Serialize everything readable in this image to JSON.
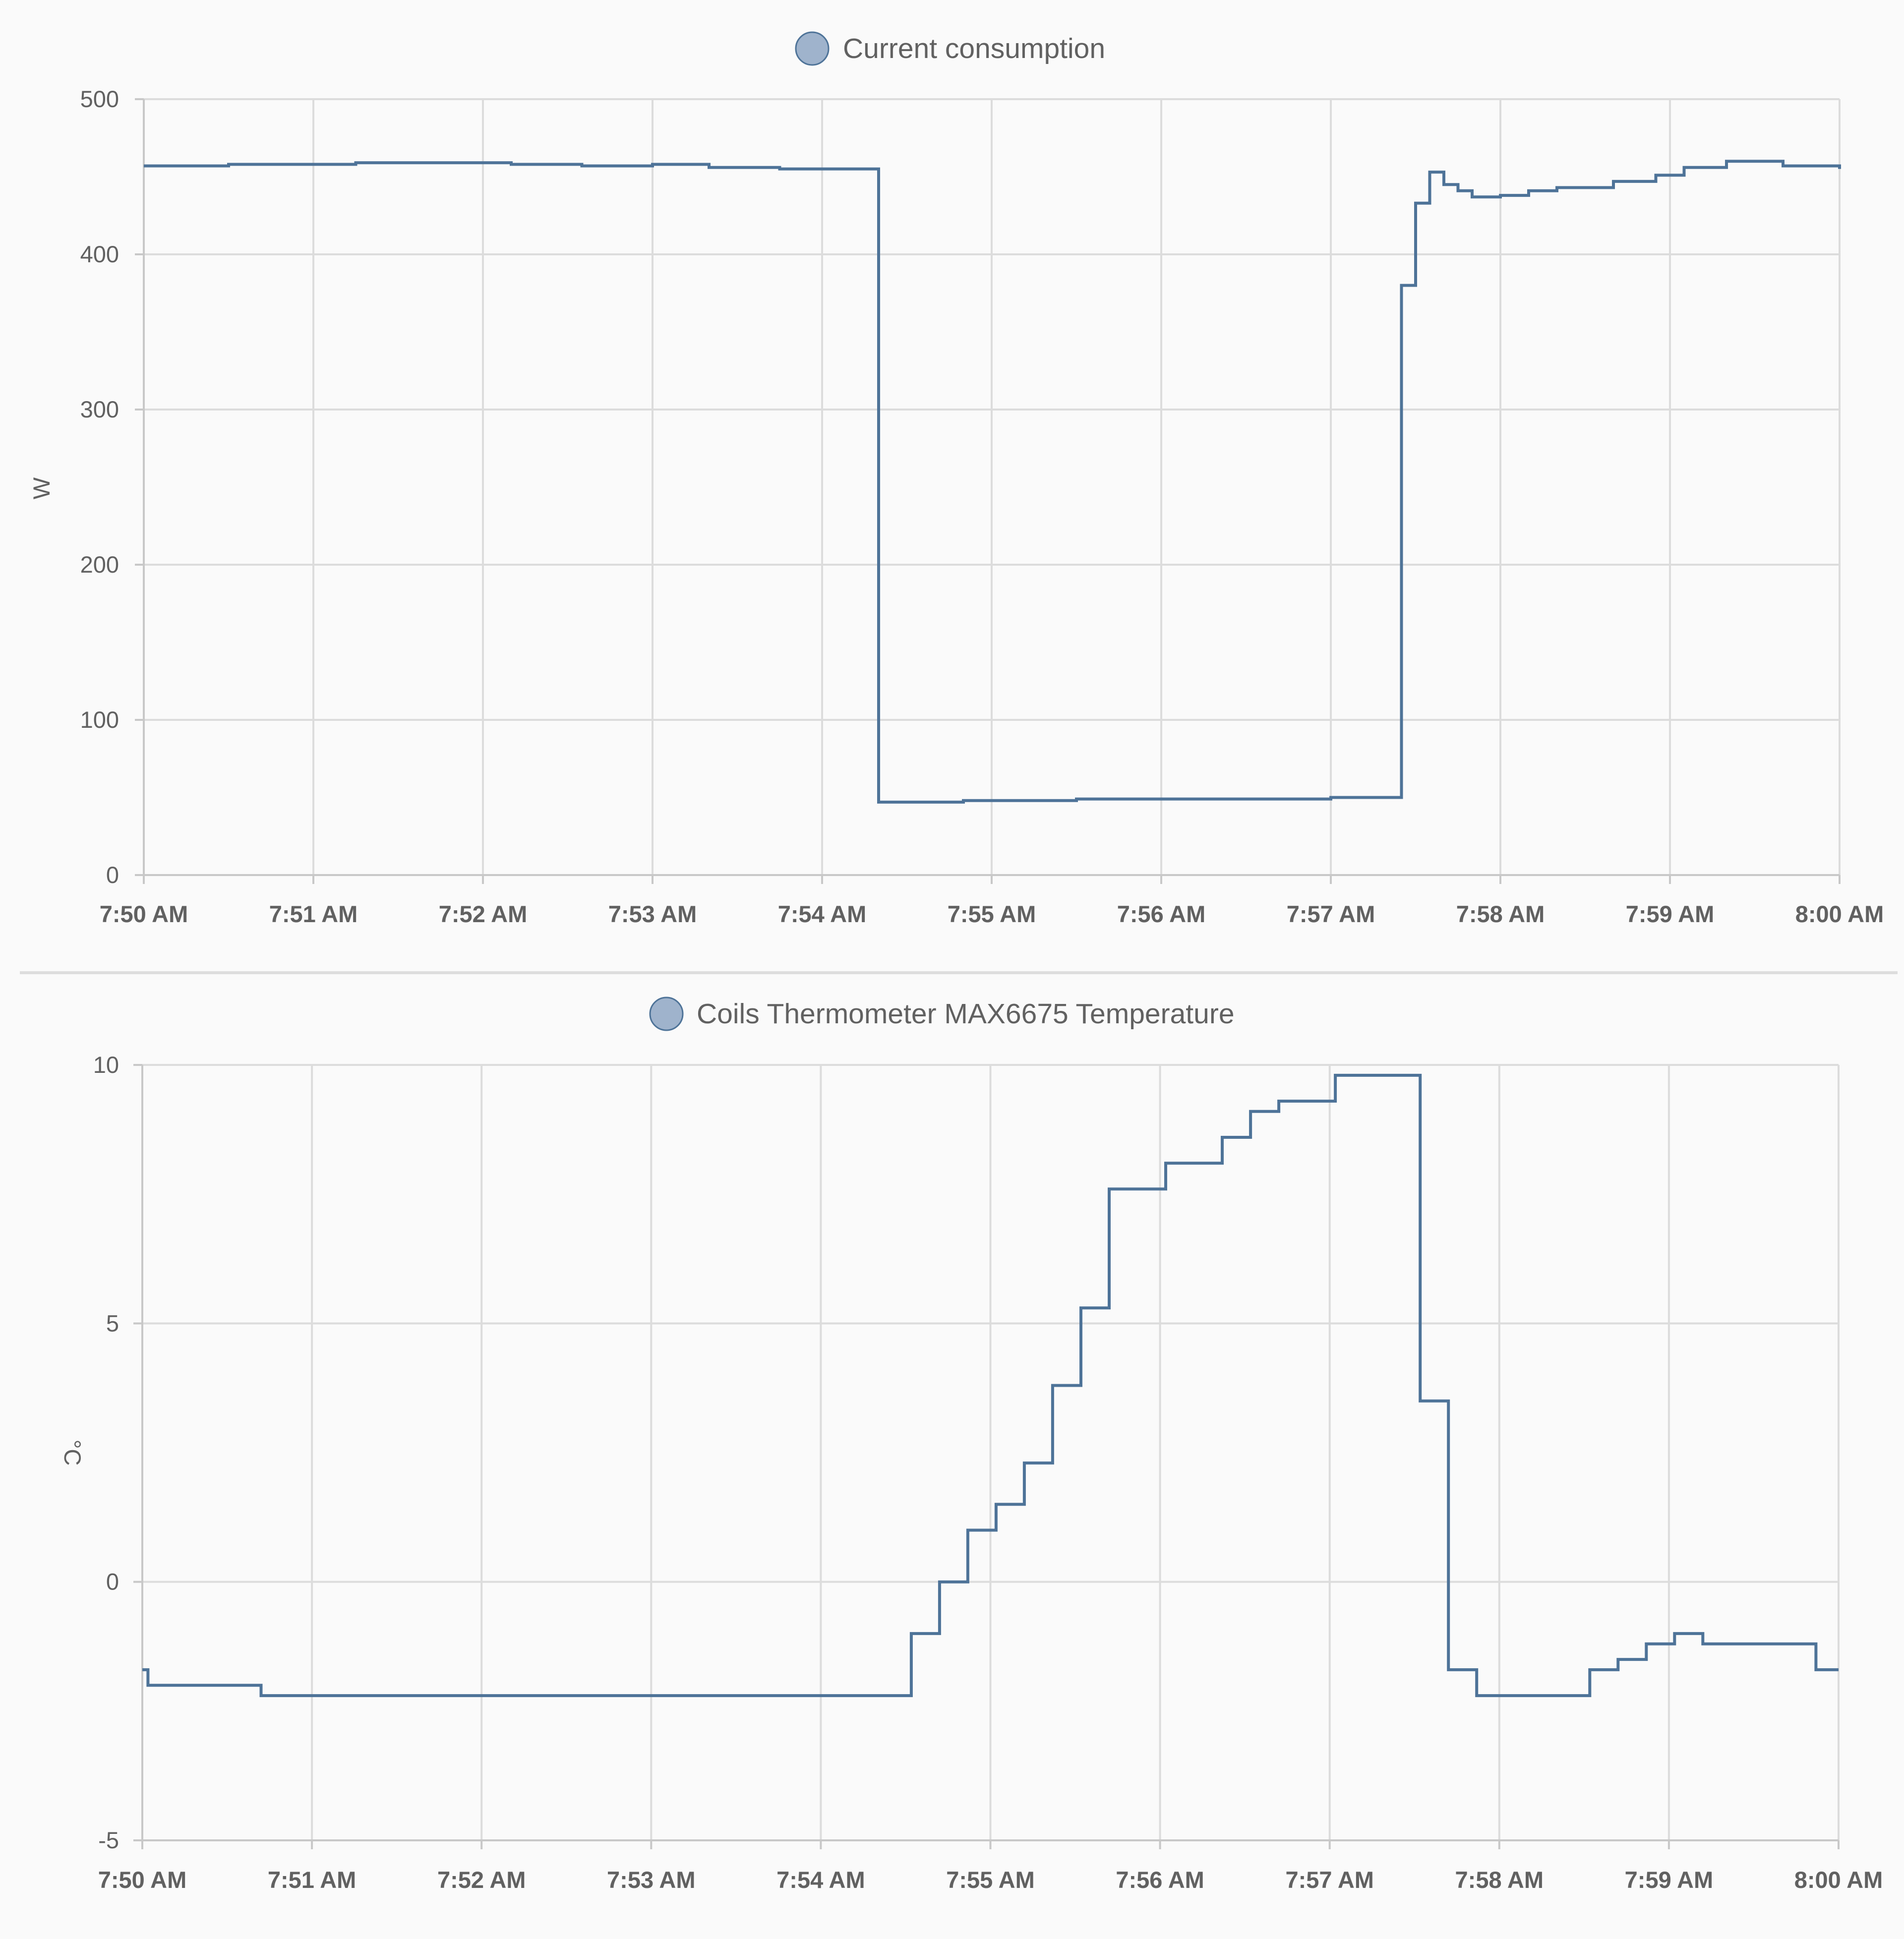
{
  "colors": {
    "line": "#4e7398",
    "legend_dot": "#9fb3cc",
    "divider": "#dddddd"
  },
  "chart_data": [
    {
      "type": "line",
      "legend": "Current consumption",
      "ylabel": "W",
      "ylim": [
        0,
        500
      ],
      "yticks": [
        "0",
        "100",
        "200",
        "300",
        "400",
        "500"
      ],
      "xticks": [
        "7:50 AM",
        "7:51 AM",
        "7:52 AM",
        "7:53 AM",
        "7:54 AM",
        "7:55 AM",
        "7:56 AM",
        "7:57 AM",
        "7:58 AM",
        "7:59 AM",
        "8:00 AM"
      ],
      "grid": true,
      "legend_position": "top-center",
      "series": [
        {
          "x": [
            "7:50:00",
            "7:50:30",
            "7:51:15",
            "7:52:10",
            "7:52:35",
            "7:53:00",
            "7:53:20",
            "7:53:45",
            "7:54:20",
            "7:54:20",
            "7:54:50",
            "7:55:30",
            "7:56:00",
            "7:57:00",
            "7:57:25",
            "7:57:25",
            "7:57:30",
            "7:57:35",
            "7:57:40",
            "7:57:45",
            "7:57:50",
            "7:58:00",
            "7:58:10",
            "7:58:20",
            "7:58:40",
            "7:58:55",
            "7:59:05",
            "7:59:20",
            "7:59:40",
            "8:00:00"
          ],
          "values": [
            457,
            458,
            459,
            458,
            457,
            458,
            456,
            455,
            456,
            47,
            48,
            49,
            49,
            50,
            50,
            380,
            433,
            453,
            445,
            441,
            437,
            438,
            441,
            443,
            447,
            451,
            456,
            460,
            457,
            455
          ]
        }
      ]
    },
    {
      "type": "line",
      "legend": "Coils Thermometer MAX6675 Temperature",
      "ylabel": "°C",
      "ylim": [
        -5,
        10
      ],
      "yticks": [
        "-5",
        "0",
        "5",
        "10"
      ],
      "xticks": [
        "7:50 AM",
        "7:51 AM",
        "7:52 AM",
        "7:53 AM",
        "7:54 AM",
        "7:55 AM",
        "7:56 AM",
        "7:57 AM",
        "7:58 AM",
        "7:59 AM",
        "8:00 AM"
      ],
      "grid": true,
      "legend_position": "top-center",
      "series": [
        {
          "x": [
            "7:50:00",
            "7:50:02",
            "7:50:42",
            "7:54:32",
            "7:54:42",
            "7:54:52",
            "7:55:02",
            "7:55:12",
            "7:55:22",
            "7:55:32",
            "7:55:42",
            "7:56:02",
            "7:56:22",
            "7:56:32",
            "7:56:42",
            "7:57:02",
            "7:57:32",
            "7:57:42",
            "7:57:52",
            "7:58:32",
            "7:58:42",
            "7:58:52",
            "7:59:02",
            "7:59:12",
            "7:59:52",
            "8:00:00"
          ],
          "values": [
            -1.7,
            -2.0,
            -2.2,
            -1.0,
            0.0,
            1.0,
            1.5,
            2.3,
            3.8,
            5.3,
            7.6,
            8.1,
            8.6,
            9.1,
            9.3,
            9.8,
            3.5,
            -1.7,
            -2.2,
            -1.7,
            -1.5,
            -1.2,
            -1.0,
            -1.2,
            -1.7,
            -1.7
          ]
        }
      ]
    }
  ]
}
